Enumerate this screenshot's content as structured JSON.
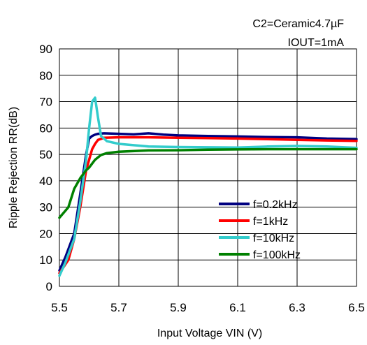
{
  "chart_data": {
    "type": "line",
    "title": "",
    "annotations": [
      "C2=Ceramic4.7µF",
      "IOUT=1mA"
    ],
    "xlabel": "Input Voltage VIN (V)",
    "ylabel": "Ripple Rejection RR(dB)",
    "xlim": [
      5.5,
      6.5
    ],
    "ylim": [
      0,
      90
    ],
    "xticks": [
      "5.5",
      "5.7",
      "5.9",
      "6.1",
      "6.3",
      "6.5"
    ],
    "yticks": [
      "0",
      "10",
      "20",
      "30",
      "40",
      "50",
      "60",
      "70",
      "80",
      "90"
    ],
    "grid": true,
    "legend_position": "lower-right",
    "series": [
      {
        "name": "f=0.2kHz",
        "color": "#000080",
        "x": [
          5.5,
          5.52,
          5.55,
          5.57,
          5.59,
          5.6,
          5.61,
          5.62,
          5.63,
          5.65,
          5.7,
          5.75,
          5.8,
          5.85,
          5.9,
          6.0,
          6.1,
          6.2,
          6.3,
          6.4,
          6.5
        ],
        "y": [
          6,
          11,
          20,
          35,
          50,
          56,
          57,
          57.5,
          57.8,
          58,
          57.8,
          57.6,
          58,
          57.5,
          57.2,
          57,
          56.8,
          56.6,
          56.5,
          56,
          55.8
        ]
      },
      {
        "name": "f=1kHz",
        "color": "#ff0000",
        "x": [
          5.5,
          5.53,
          5.55,
          5.57,
          5.59,
          5.61,
          5.62,
          5.63,
          5.65,
          5.7,
          5.8,
          5.9,
          6.0,
          6.1,
          6.2,
          6.3,
          6.4,
          6.5
        ],
        "y": [
          5,
          10,
          18,
          30,
          44,
          52,
          54,
          55.5,
          56.3,
          56.5,
          56.5,
          56.3,
          56.2,
          56,
          55.8,
          55.5,
          55.3,
          55.1
        ]
      },
      {
        "name": "f=10kHz",
        "color": "#33cccc",
        "x": [
          5.5,
          5.52,
          5.55,
          5.57,
          5.59,
          5.6,
          5.61,
          5.62,
          5.63,
          5.64,
          5.66,
          5.7,
          5.8,
          5.9,
          6.0,
          6.1,
          6.2,
          6.3,
          6.4,
          6.5
        ],
        "y": [
          4,
          9,
          18,
          32,
          48,
          60,
          70,
          71.5,
          64,
          57,
          55,
          54,
          53,
          52.8,
          52.7,
          52.6,
          53,
          53.2,
          53,
          52.5
        ]
      },
      {
        "name": "f=100kHz",
        "color": "#008000",
        "x": [
          5.5,
          5.53,
          5.55,
          5.57,
          5.59,
          5.6,
          5.62,
          5.64,
          5.66,
          5.7,
          5.8,
          5.9,
          6.0,
          6.1,
          6.2,
          6.3,
          6.4,
          6.5
        ],
        "y": [
          26,
          30,
          37,
          41,
          44,
          45,
          48,
          49.8,
          50.5,
          51,
          51.5,
          51.6,
          51.8,
          51.9,
          52,
          52,
          52,
          52
        ]
      }
    ]
  }
}
